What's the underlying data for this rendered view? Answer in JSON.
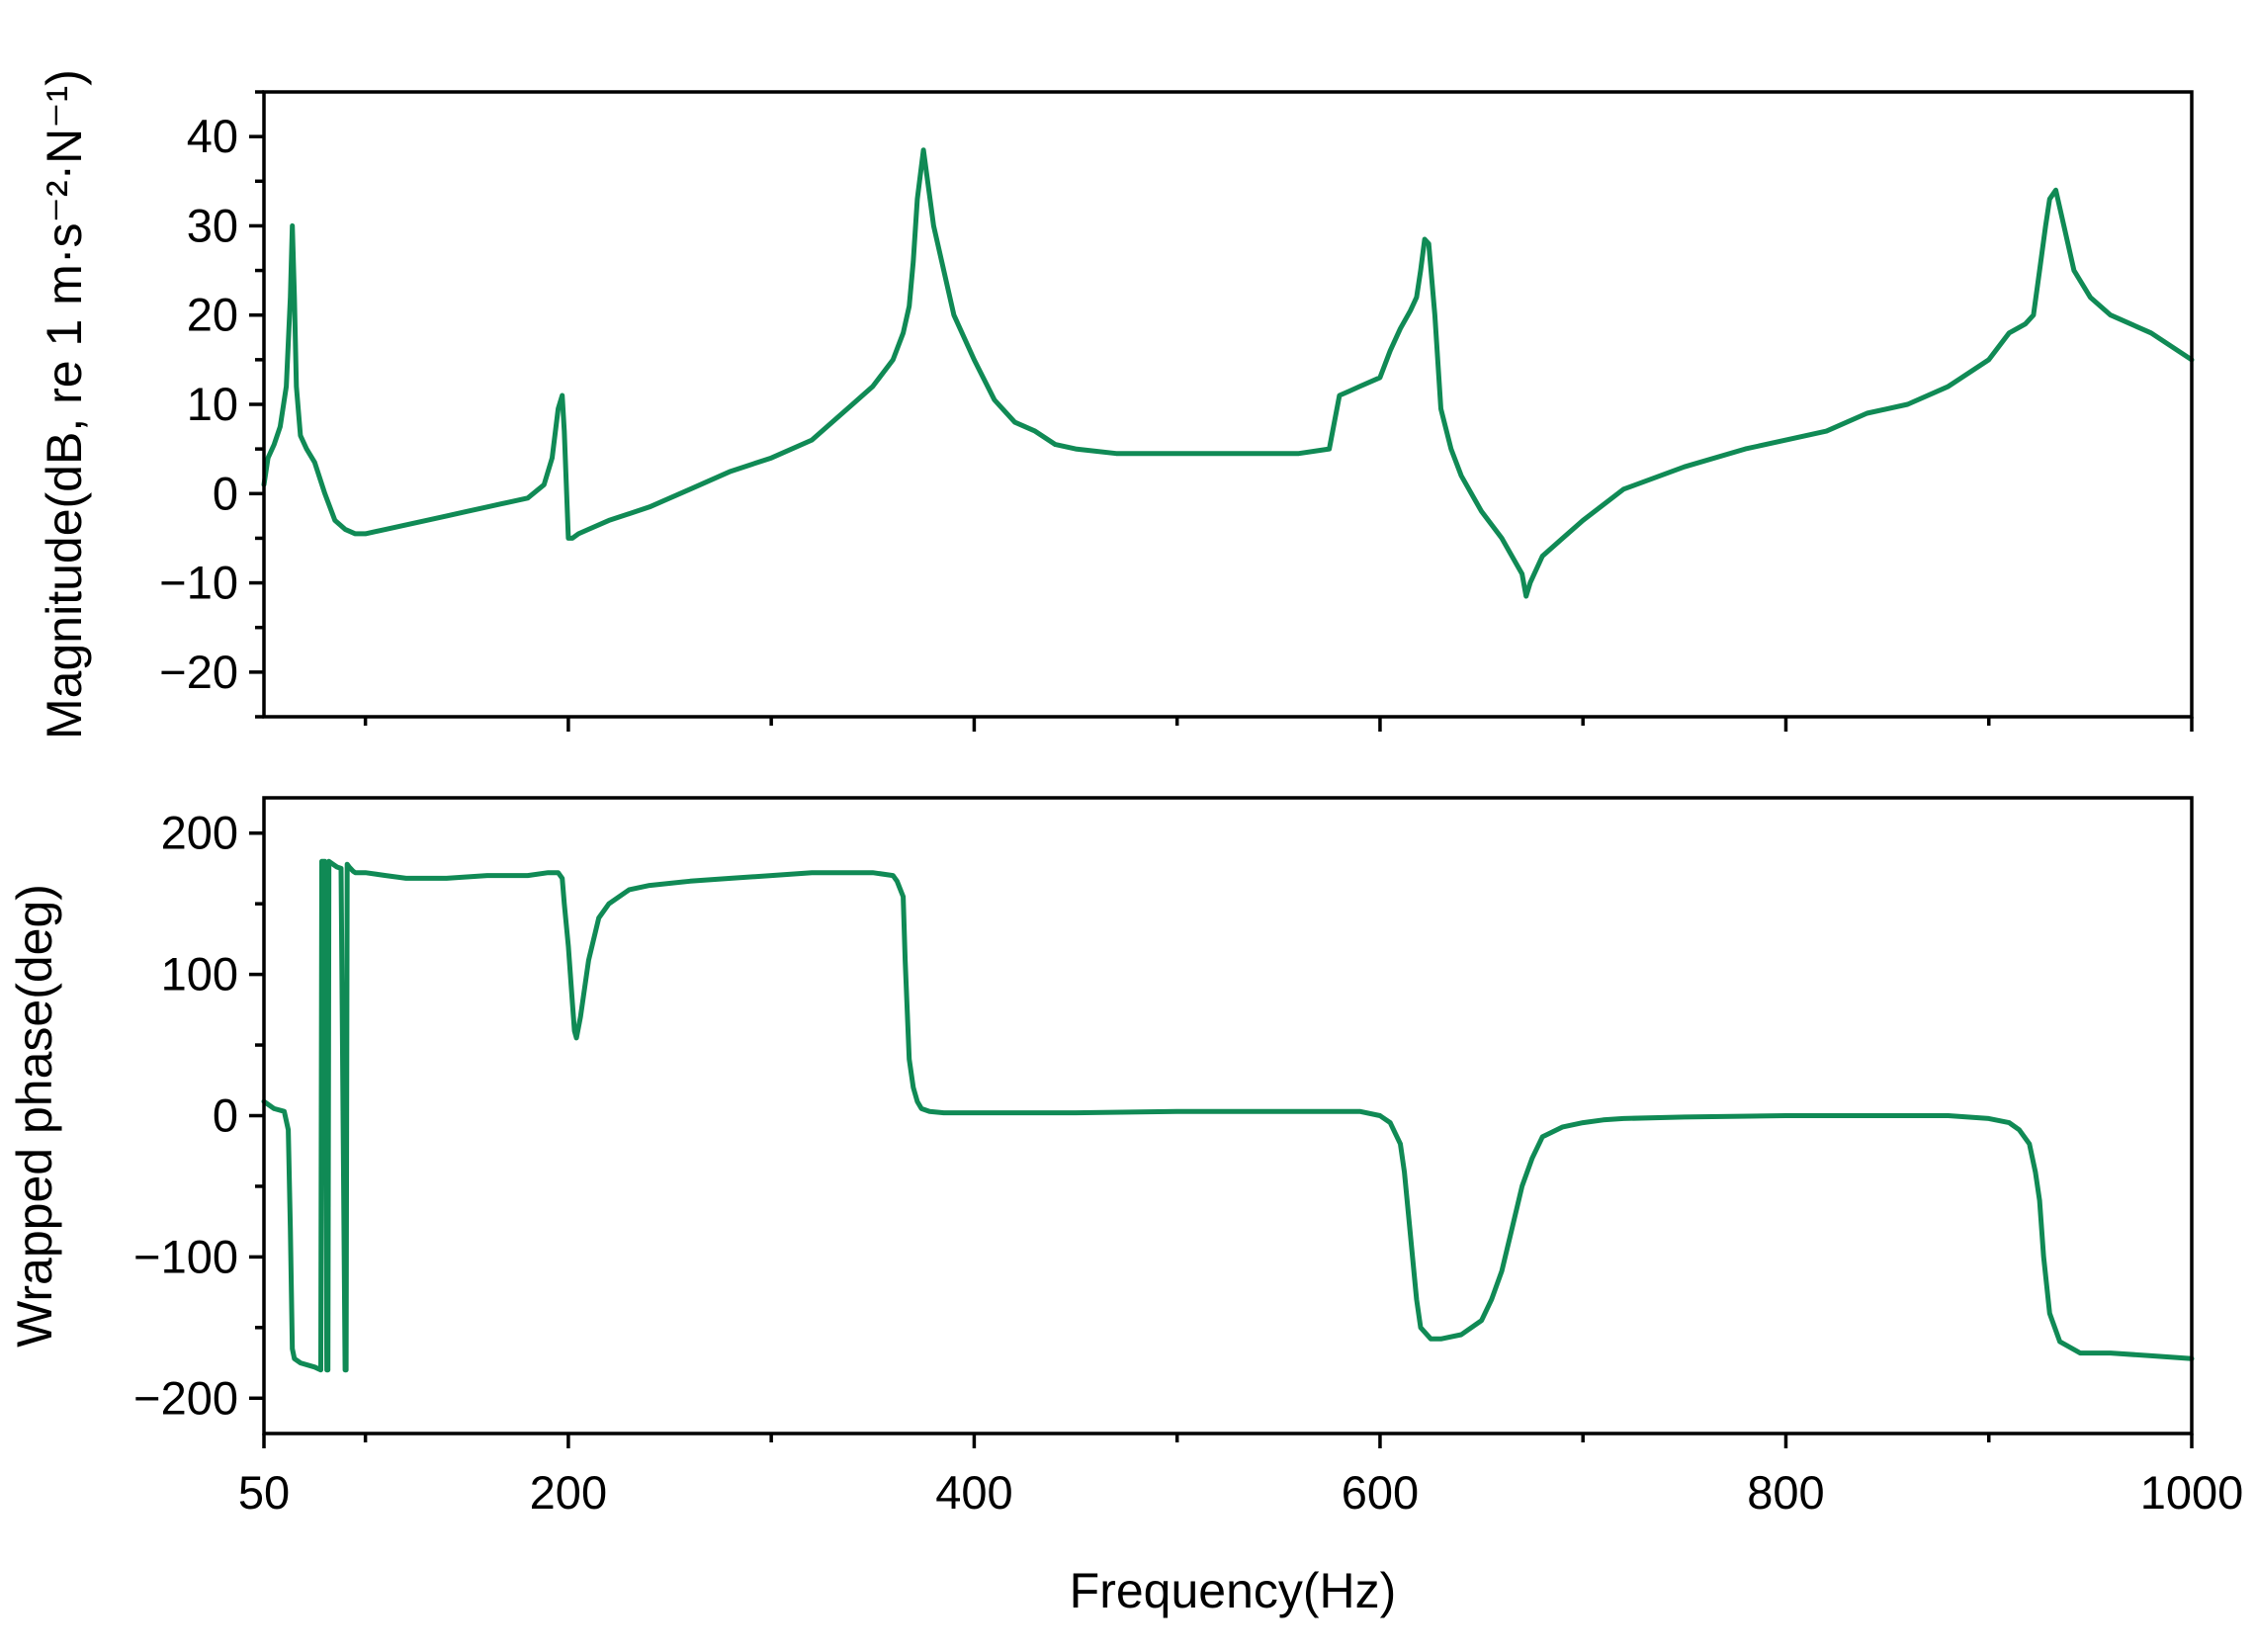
{
  "chart_data": [
    {
      "type": "line",
      "xlabel": "",
      "ylabel": "Magnitude(dB,  re 1 m·s⁻²·N⁻¹)",
      "xlim": [
        50,
        1000
      ],
      "ylim": [
        -25,
        45
      ],
      "x_ticks": [
        200,
        400,
        600,
        800,
        1000
      ],
      "x_minor_ticks": [
        100,
        300,
        500,
        700,
        900
      ],
      "y_ticks": [
        40,
        30,
        20,
        10,
        0,
        -10,
        -20
      ],
      "y_minor_ticks": [
        45,
        35,
        25,
        15,
        5,
        -5,
        -15,
        -25
      ],
      "y_tick_labels": [
        "40",
        "30",
        "20",
        "10",
        "0",
        "−10",
        "−20"
      ],
      "grid": false,
      "series": [
        {
          "color": "#108a55",
          "x": [
            50,
            52,
            55,
            58,
            61,
            63,
            64,
            65,
            66,
            68,
            71,
            75,
            80,
            85,
            90,
            95,
            100,
            110,
            120,
            130,
            140,
            150,
            160,
            170,
            180,
            188,
            192,
            195,
            197,
            198,
            200,
            202,
            205,
            210,
            220,
            240,
            260,
            280,
            300,
            320,
            340,
            350,
            360,
            365,
            368,
            370,
            372,
            375,
            380,
            390,
            400,
            410,
            420,
            430,
            440,
            450,
            470,
            500,
            520,
            540,
            560,
            575,
            580,
            585,
            590,
            600,
            605,
            610,
            615,
            618,
            620,
            622,
            624,
            627,
            630,
            635,
            640,
            650,
            660,
            670,
            672,
            674,
            680,
            690,
            700,
            720,
            750,
            780,
            800,
            820,
            840,
            860,
            880,
            900,
            910,
            918,
            922,
            925,
            928,
            930,
            933,
            937,
            942,
            950,
            960,
            980,
            1000
          ],
          "values": [
            1,
            4,
            5.5,
            7.5,
            12,
            22,
            30,
            22,
            12,
            6.5,
            5,
            3.5,
            0,
            -3,
            -4,
            -4.5,
            -4.5,
            -4,
            -3.5,
            -3,
            -2.5,
            -2,
            -1.5,
            -1,
            -0.5,
            1,
            4,
            9.5,
            11,
            7,
            -5,
            -5,
            -4.5,
            -4,
            -3,
            -1.5,
            0.5,
            2.5,
            4,
            6,
            10,
            12,
            15,
            18,
            21,
            26,
            33,
            38.5,
            30,
            20,
            15,
            10.5,
            8,
            7,
            5.5,
            5,
            4.5,
            4.5,
            4.5,
            4.5,
            4.5,
            5,
            11,
            11.5,
            12,
            13,
            16,
            18.5,
            20.5,
            22,
            25,
            28.5,
            28,
            20,
            9.5,
            5,
            2,
            -2,
            -5,
            -9,
            -11.5,
            -10,
            -7,
            -5,
            -3,
            0.5,
            3,
            5,
            6,
            7,
            9,
            10,
            12,
            15,
            18,
            19,
            20,
            25,
            30,
            33,
            34,
            30,
            25,
            22,
            20,
            18,
            15
          ]
        }
      ]
    },
    {
      "type": "line",
      "xlabel": "Frequency(Hz)",
      "ylabel": "Wrapped phase(deg)",
      "xlim": [
        50,
        1000
      ],
      "ylim": [
        -225,
        225
      ],
      "x_ticks": [
        50,
        200,
        400,
        600,
        800,
        1000
      ],
      "x_minor_ticks": [
        100,
        300,
        500,
        700,
        900
      ],
      "y_ticks": [
        200,
        100,
        0,
        -100,
        -200
      ],
      "y_minor_ticks": [
        150,
        50,
        -50,
        -150
      ],
      "y_tick_labels": [
        "200",
        "100",
        "0",
        "−100",
        "−200"
      ],
      "grid": false,
      "series": [
        {
          "color": "#108a55",
          "x": [
            50,
            52,
            55,
            60,
            62,
            63,
            64,
            65,
            68,
            75,
            78,
            78.5,
            79,
            80,
            81,
            81.5,
            82,
            84,
            86,
            88,
            90,
            90.5,
            91,
            92,
            94,
            95,
            100,
            110,
            120,
            140,
            160,
            180,
            190,
            195,
            197,
            198,
            200,
            202,
            203,
            204,
            206,
            210,
            215,
            220,
            230,
            240,
            260,
            280,
            300,
            320,
            340,
            350,
            360,
            362,
            365,
            366,
            368,
            370,
            372,
            374,
            378,
            385,
            400,
            450,
            500,
            550,
            580,
            590,
            600,
            605,
            610,
            612,
            614,
            616,
            618,
            620,
            625,
            630,
            640,
            650,
            655,
            660,
            665,
            670,
            675,
            680,
            690,
            700,
            710,
            720,
            750,
            800,
            850,
            880,
            900,
            910,
            915,
            920,
            923,
            925,
            927,
            930,
            935,
            945,
            960,
            980,
            1000
          ],
          "values": [
            10,
            8,
            5,
            3,
            -10,
            -80,
            -165,
            -172,
            -175,
            -178,
            -180,
            180,
            180,
            180,
            -180,
            -180,
            180,
            178,
            176,
            175,
            -180,
            -180,
            178,
            176,
            173,
            172,
            172,
            170,
            168,
            168,
            170,
            170,
            172,
            172,
            168,
            150,
            120,
            80,
            60,
            55,
            70,
            110,
            140,
            150,
            160,
            163,
            166,
            168,
            170,
            172,
            172,
            172,
            170,
            166,
            155,
            110,
            40,
            20,
            10,
            5,
            3,
            2,
            2,
            2,
            3,
            3,
            3,
            3,
            0,
            -5,
            -20,
            -40,
            -70,
            -100,
            -130,
            -150,
            -158,
            -158,
            -155,
            -145,
            -130,
            -110,
            -80,
            -50,
            -30,
            -15,
            -8,
            -5,
            -3,
            -2,
            -1,
            0,
            0,
            0,
            -2,
            -5,
            -10,
            -20,
            -40,
            -60,
            -100,
            -140,
            -160,
            -168,
            -168,
            -170,
            -172
          ]
        }
      ]
    }
  ]
}
